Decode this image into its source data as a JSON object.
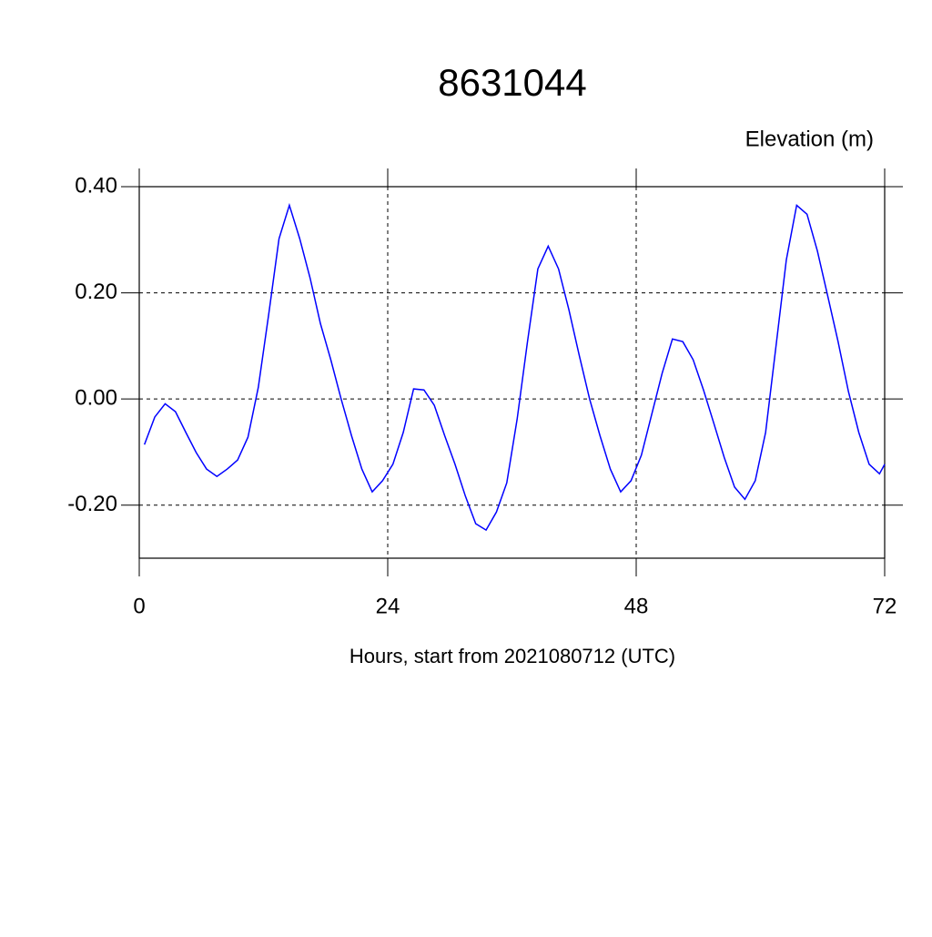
{
  "chart_data": {
    "type": "line",
    "title": "8631044",
    "y_label": "Elevation (m)",
    "x_label": "Hours, start from 2021080712 (UTC)",
    "x": [
      0.5,
      1.5,
      2.5,
      3.5,
      4.5,
      5.5,
      6.5,
      7.5,
      8.5,
      9.5,
      10.5,
      11.5,
      12.5,
      13.5,
      14.5,
      15.5,
      16.5,
      17.5,
      18.5,
      19.5,
      20.5,
      21.5,
      22.5,
      23.5,
      24.5,
      25.5,
      26.5,
      27.5,
      28.5,
      29.5,
      30.5,
      31.5,
      32.5,
      33.5,
      34.5,
      35.5,
      36.5,
      37.5,
      38.5,
      39.5,
      40.5,
      41.5,
      42.5,
      43.5,
      44.5,
      45.5,
      46.5,
      47.5,
      48.5,
      49.5,
      50.5,
      51.5,
      52.5,
      53.5,
      54.5,
      55.5,
      56.5,
      57.5,
      58.5,
      59.5,
      60.5,
      61.5,
      62.5,
      63.5,
      64.5,
      65.5,
      66.5,
      67.5,
      68.5,
      69.5,
      70.5,
      71.5,
      72
    ],
    "series": [
      {
        "name": "Elevation",
        "color": "#0000ff",
        "values": [
          -0.086,
          -0.034,
          -0.009,
          -0.024,
          -0.063,
          -0.101,
          -0.132,
          -0.146,
          -0.132,
          -0.115,
          -0.072,
          0.022,
          0.159,
          0.302,
          0.365,
          0.302,
          0.228,
          0.142,
          0.074,
          0.0,
          -0.069,
          -0.132,
          -0.175,
          -0.154,
          -0.123,
          -0.063,
          0.019,
          0.017,
          -0.012,
          -0.069,
          -0.123,
          -0.183,
          -0.235,
          -0.247,
          -0.213,
          -0.158,
          -0.038,
          0.108,
          0.245,
          0.288,
          0.245,
          0.168,
          0.082,
          0.0,
          -0.069,
          -0.132,
          -0.175,
          -0.154,
          -0.106,
          -0.029,
          0.048,
          0.113,
          0.108,
          0.074,
          0.017,
          -0.046,
          -0.11,
          -0.166,
          -0.189,
          -0.154,
          -0.063,
          0.099,
          0.262,
          0.365,
          0.348,
          0.279,
          0.194,
          0.108,
          0.014,
          -0.063,
          -0.123,
          -0.141,
          -0.123
        ]
      }
    ],
    "xlim": [
      0,
      72
    ],
    "xticks": [
      0,
      24,
      48,
      72
    ],
    "ylim": [
      -0.3,
      0.4
    ],
    "yticks": [
      {
        "value": -0.2,
        "label": "-0.20"
      },
      {
        "value": 0,
        "label": "0.00"
      },
      {
        "value": 0.2,
        "label": "0.20"
      },
      {
        "value": 0.4,
        "label": "0.40"
      }
    ],
    "grid": true
  }
}
